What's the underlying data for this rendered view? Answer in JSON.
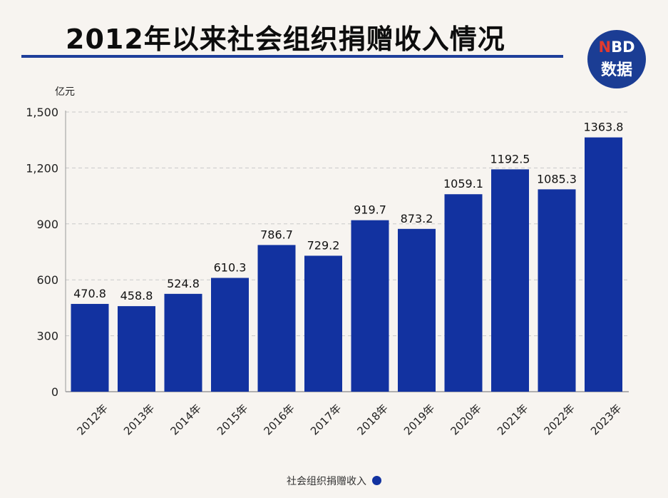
{
  "title": "2012年以来社会组织捐赠收入情况",
  "logo": {
    "top_n": "N",
    "top_rest": "BD",
    "bottom": "数据"
  },
  "colors": {
    "bar": "#1232a0",
    "rule": "#1f3f9a",
    "logo_bg": "#1b3d94",
    "logo_n": "#e23a2e"
  },
  "chart_data": {
    "type": "bar",
    "title": "2012年以来社会组织捐赠收入情况",
    "unit": "亿元",
    "categories": [
      "2012年",
      "2013年",
      "2014年",
      "2015年",
      "2016年",
      "2017年",
      "2018年",
      "2019年",
      "2020年",
      "2021年",
      "2022年",
      "2023年"
    ],
    "series": [
      {
        "name": "社会组织捐赠收入",
        "values": [
          470.8,
          458.8,
          524.8,
          610.3,
          786.7,
          729.2,
          919.7,
          873.2,
          1059.1,
          1192.5,
          1085.3,
          1363.8
        ]
      }
    ],
    "value_labels": [
      "470.8",
      "458.8",
      "524.8",
      "610.3",
      "786.7",
      "729.2",
      "919.7",
      "873.2",
      "1059.1",
      "1192.5",
      "1085.3",
      "1363.8"
    ],
    "yticks": [
      0,
      300,
      600,
      900,
      1200,
      1500
    ],
    "ytick_labels": [
      "0",
      "300",
      "600",
      "900",
      "1,200",
      "1,500"
    ],
    "ylim": [
      0,
      1500
    ],
    "grid": "horizontal dashed",
    "legend": "bottom-center"
  }
}
